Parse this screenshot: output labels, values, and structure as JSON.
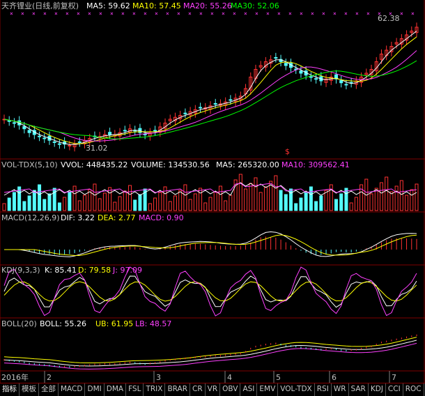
{
  "main": {
    "title": "天齐锂业(日线,前复权)",
    "ma5": {
      "label": "MA5: 59.62",
      "color": "#ffffff"
    },
    "ma10": {
      "label": "MA10: 57.45",
      "color": "#ffff00"
    },
    "ma20": {
      "label": "MA20: 55.26",
      "color": "#ff40ff"
    },
    "ma30": {
      "label": "MA30: 52.06",
      "color": "#00ff00"
    },
    "high_label": "62.38",
    "low_label": "31.02",
    "marker_label": "$"
  },
  "vol": {
    "title": "VOL-TDX(5,10)",
    "vvol": "VVOL: 448435.22",
    "volume": "VOLUME: 134530.56",
    "ma5": "MA5: 265320.00",
    "ma10": "MA10: 309562.41"
  },
  "macd": {
    "title": "MACD(12,26,9)",
    "dif": "DIF: 3.22",
    "dea": "DEA: 2.77",
    "macd": "MACD: 0.90"
  },
  "kdj": {
    "title": "KDJ(9,3,3)",
    "k": "K: 85.41",
    "d": "D: 79.58",
    "j": "J: 97.09"
  },
  "boll": {
    "title": "BOLL(20)",
    "boll": "BOLL: 55.26",
    "ub": "UB: 61.95",
    "lb": "LB: 48.57"
  },
  "x_axis": {
    "year": "2016年",
    "months": [
      "2",
      "3",
      "4",
      "5",
      "6",
      "7"
    ]
  },
  "colors": {
    "up": "#ff3232",
    "down": "#54fcfc",
    "grid": "#800000",
    "text": "#c0c0c0"
  },
  "tabs": [
    "指标",
    "模板",
    "全部",
    "MACD",
    "DMI",
    "DMA",
    "FSL",
    "TRIX",
    "BRAR",
    "CR",
    "VR",
    "OBV",
    "ASI",
    "EMV",
    "VOL-TDX",
    "RSI",
    "WR",
    "SAR",
    "KDJ",
    "CCI",
    "ROC"
  ],
  "chart_data": {
    "type": "candlestick",
    "price_axis_marks": {
      "high": 62.38,
      "low": 31.02
    },
    "close_path_estimate": [
      38,
      37.5,
      37,
      36.5,
      35.5,
      34.5,
      34,
      33.5,
      33,
      32.5,
      32,
      31.5,
      31.5,
      31.2,
      31.5,
      32,
      32.5,
      33,
      33.5,
      33.5,
      34,
      34,
      34,
      34.5,
      35,
      35.5,
      35,
      34.5,
      34,
      34.5,
      35,
      36,
      37,
      38,
      38.5,
      39,
      39.5,
      40,
      40.5,
      41,
      41,
      41.5,
      42,
      42,
      42.5,
      43,
      43.5,
      44,
      46,
      49,
      51,
      52,
      53,
      53.5,
      54,
      53,
      52,
      51.5,
      51,
      50,
      49.5,
      49,
      48.5,
      48,
      48.5,
      49,
      48.5,
      47.5,
      47,
      47.5,
      48,
      49,
      50,
      51,
      53,
      55,
      56,
      57,
      58,
      59,
      60,
      61,
      62
    ]
  }
}
